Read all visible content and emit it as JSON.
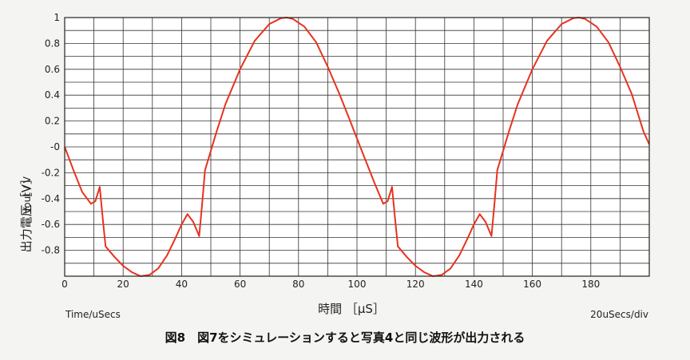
{
  "chart_data": {
    "type": "line",
    "ylabel_unit": "Vout / V",
    "ylabel_jp": "出力電圧［V］",
    "xlabel_unit": "Time/uSecs",
    "xlabel_jp": "時間 ［μS］",
    "scale_note": "20uSecs/div",
    "xlim": [
      0,
      200
    ],
    "ylim": [
      -1,
      1
    ],
    "x_ticks": [
      "0",
      "20",
      "40",
      "60",
      "80",
      "100",
      "120",
      "140",
      "160",
      "180"
    ],
    "y_ticks": [
      "1",
      "0.8",
      "0.6",
      "0.4",
      "0.2",
      "-0",
      "-0.2",
      "-0.4",
      "-0.6",
      "-0.8"
    ],
    "grid": true,
    "line_color": "#e8321e",
    "series": [
      {
        "x": [
          0,
          3,
          6,
          9,
          10.5,
          12,
          13,
          14,
          17,
          20,
          23,
          26,
          29,
          32,
          35,
          38,
          40,
          42,
          44,
          46,
          47,
          48,
          50,
          52,
          55,
          60,
          65,
          70,
          74,
          76,
          78,
          82,
          86,
          90,
          94,
          98,
          102,
          106,
          109,
          110.5,
          112,
          113,
          114,
          117,
          120,
          123,
          126,
          129,
          132,
          135,
          138,
          140,
          142,
          144,
          146,
          147,
          148,
          150,
          152,
          155,
          160,
          165,
          170,
          174,
          176,
          178,
          182,
          186,
          190,
          194,
          198,
          200
        ],
        "y": [
          0,
          -0.18,
          -0.35,
          -0.44,
          -0.42,
          -0.31,
          -0.55,
          -0.77,
          -0.85,
          -0.92,
          -0.97,
          -1.0,
          -0.99,
          -0.94,
          -0.84,
          -0.7,
          -0.6,
          -0.52,
          -0.58,
          -0.69,
          -0.45,
          -0.18,
          -0.03,
          0.12,
          0.33,
          0.6,
          0.82,
          0.95,
          0.995,
          1.0,
          0.99,
          0.93,
          0.81,
          0.62,
          0.41,
          0.18,
          -0.05,
          -0.28,
          -0.44,
          -0.42,
          -0.31,
          -0.55,
          -0.77,
          -0.85,
          -0.92,
          -0.97,
          -1.0,
          -0.99,
          -0.94,
          -0.84,
          -0.7,
          -0.6,
          -0.52,
          -0.58,
          -0.69,
          -0.45,
          -0.18,
          -0.03,
          0.12,
          0.33,
          0.6,
          0.82,
          0.95,
          0.995,
          1.0,
          0.99,
          0.93,
          0.81,
          0.62,
          0.41,
          0.12,
          0.02
        ]
      }
    ]
  },
  "caption": "図8　図7をシミュレーションすると写真4と同じ波形が出力される"
}
